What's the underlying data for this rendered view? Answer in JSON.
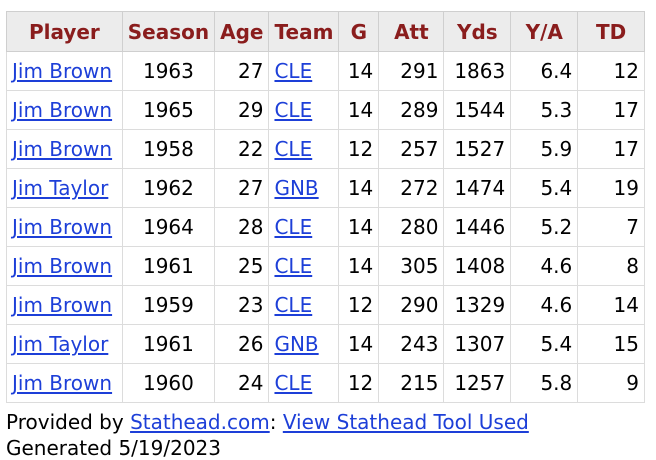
{
  "table": {
    "headers": [
      "Player",
      "Season",
      "Age",
      "Team",
      "G",
      "Att",
      "Yds",
      "Y/A",
      "TD"
    ],
    "rows": [
      {
        "player": "Jim Brown",
        "season": "1963",
        "age": "27",
        "team": "CLE",
        "g": "14",
        "att": "291",
        "yds": "1863",
        "ya": "6.4",
        "td": "12"
      },
      {
        "player": "Jim Brown",
        "season": "1965",
        "age": "29",
        "team": "CLE",
        "g": "14",
        "att": "289",
        "yds": "1544",
        "ya": "5.3",
        "td": "17"
      },
      {
        "player": "Jim Brown",
        "season": "1958",
        "age": "22",
        "team": "CLE",
        "g": "12",
        "att": "257",
        "yds": "1527",
        "ya": "5.9",
        "td": "17"
      },
      {
        "player": "Jim Taylor",
        "season": "1962",
        "age": "27",
        "team": "GNB",
        "g": "14",
        "att": "272",
        "yds": "1474",
        "ya": "5.4",
        "td": "19"
      },
      {
        "player": "Jim Brown",
        "season": "1964",
        "age": "28",
        "team": "CLE",
        "g": "14",
        "att": "280",
        "yds": "1446",
        "ya": "5.2",
        "td": "7"
      },
      {
        "player": "Jim Brown",
        "season": "1961",
        "age": "25",
        "team": "CLE",
        "g": "14",
        "att": "305",
        "yds": "1408",
        "ya": "4.6",
        "td": "8"
      },
      {
        "player": "Jim Brown",
        "season": "1959",
        "age": "23",
        "team": "CLE",
        "g": "12",
        "att": "290",
        "yds": "1329",
        "ya": "4.6",
        "td": "14"
      },
      {
        "player": "Jim Taylor",
        "season": "1961",
        "age": "26",
        "team": "GNB",
        "g": "14",
        "att": "243",
        "yds": "1307",
        "ya": "5.4",
        "td": "15"
      },
      {
        "player": "Jim Brown",
        "season": "1960",
        "age": "24",
        "team": "CLE",
        "g": "12",
        "att": "215",
        "yds": "1257",
        "ya": "5.8",
        "td": "9"
      }
    ]
  },
  "footer": {
    "provided_by": "Provided by ",
    "stathead_link": "Stathead.com",
    "separator": ": ",
    "tool_link": "View Stathead Tool Used",
    "generated": "Generated 5/19/2023"
  },
  "colors": {
    "header_text": "#8a1d1d",
    "header_bg": "#ececec",
    "link": "#1d3fd8"
  }
}
